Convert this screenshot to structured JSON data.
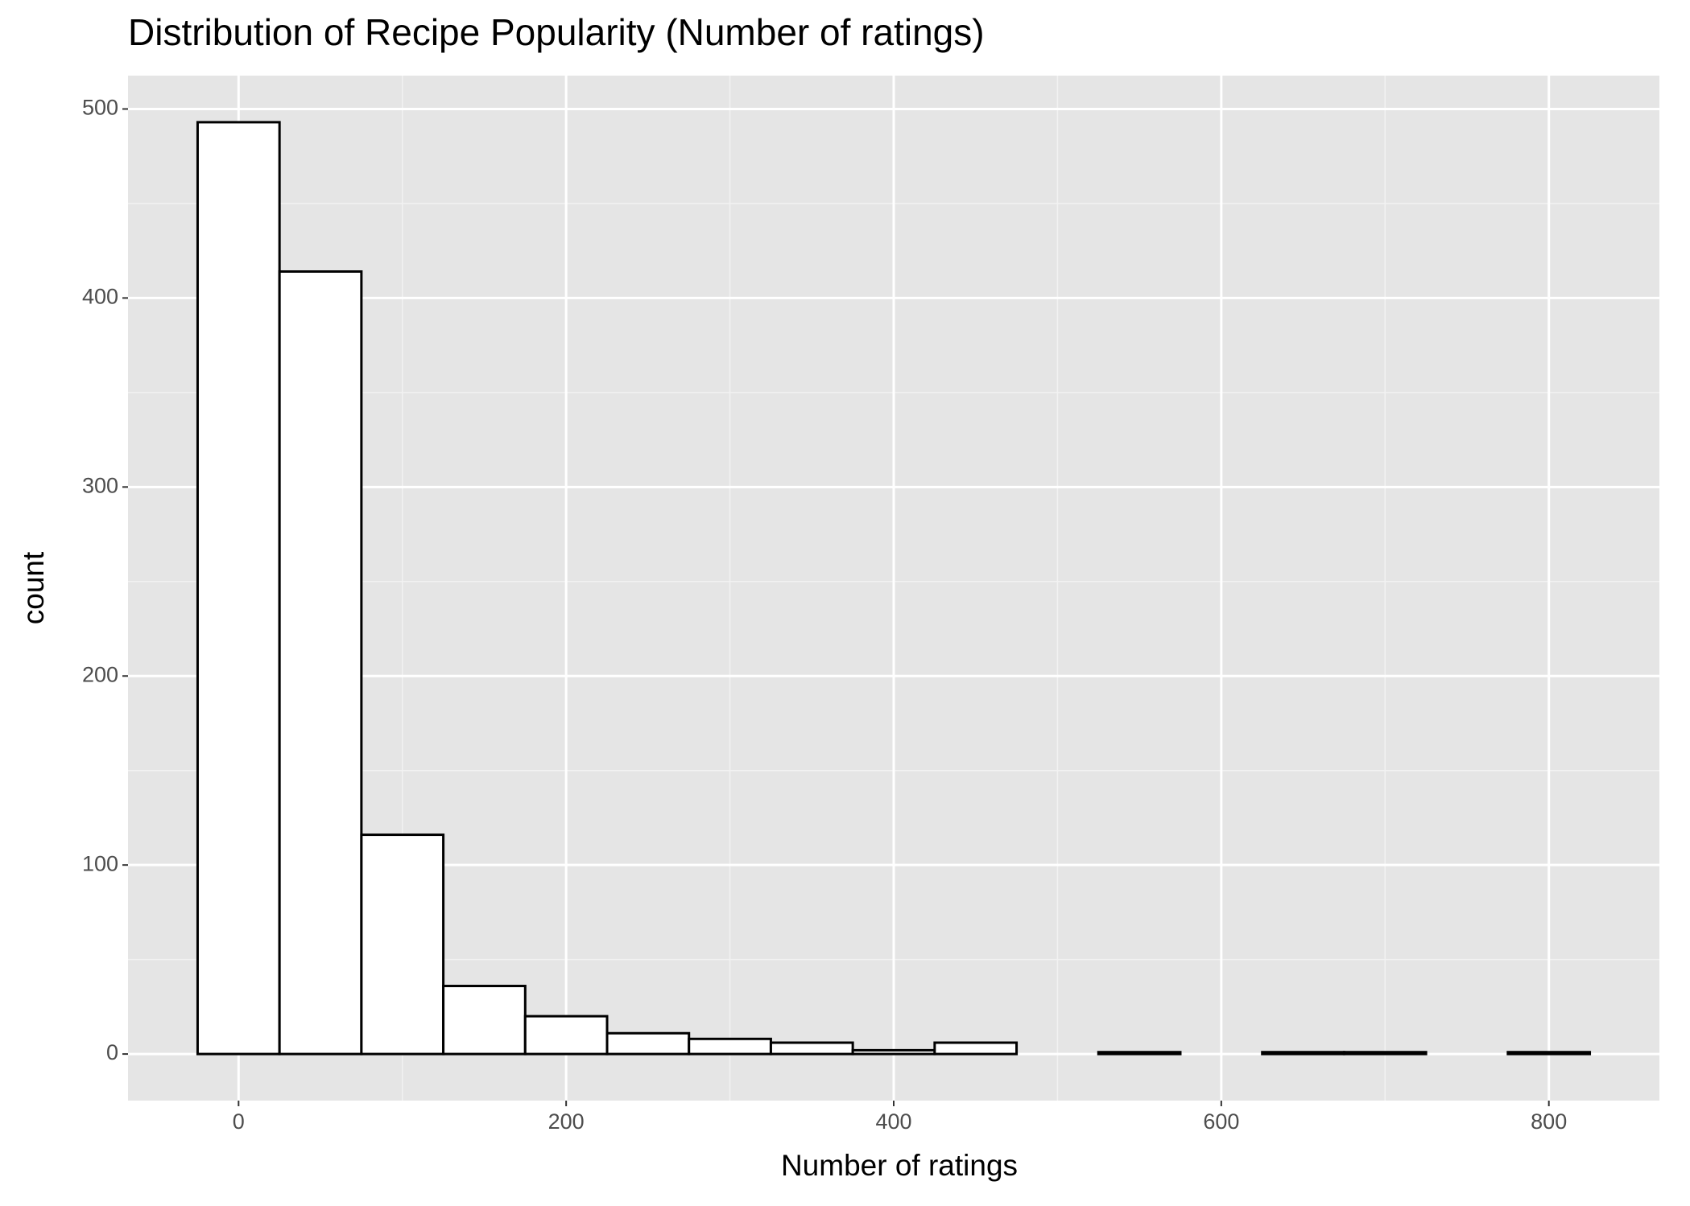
{
  "chart_data": {
    "type": "histogram",
    "title": "Distribution of Recipe Popularity (Number of ratings)",
    "x_label": "Number of ratings",
    "y_label": "count",
    "bins": [
      -25,
      25,
      75,
      125,
      175,
      225,
      275,
      325,
      375,
      425,
      475,
      525,
      575,
      625,
      675,
      725,
      775,
      825
    ],
    "counts": [
      493,
      414,
      116,
      36,
      20,
      11,
      8,
      6,
      2,
      6,
      0,
      1,
      0,
      1,
      1,
      0,
      1
    ],
    "color": "#ffffff",
    "edgecolor": "#000000",
    "xlim": [
      -67.5,
      867.5
    ],
    "ylim": [
      -24.65,
      517.65
    ],
    "xticks": [
      0,
      200,
      400,
      600,
      800
    ],
    "yticks": [
      0,
      100,
      200,
      300,
      400,
      500
    ],
    "grid": true,
    "background": "#e5e5e5"
  }
}
